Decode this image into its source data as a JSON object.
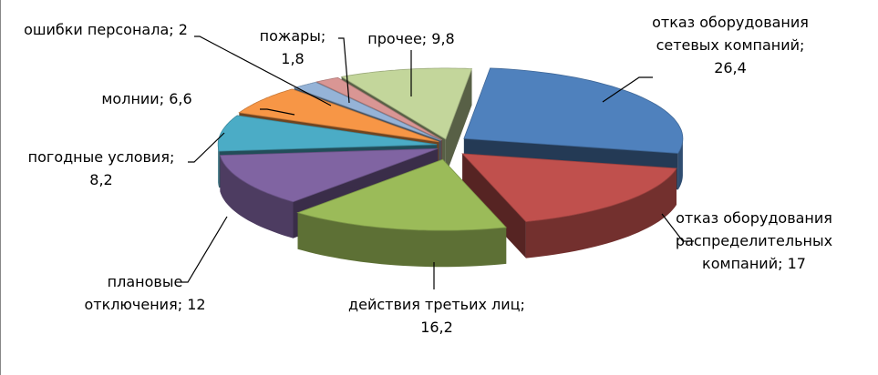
{
  "chart_data": {
    "type": "pie3d",
    "categories": [
      "отказ оборудования сетевых компаний;",
      "отказ оборудования распределительных компаний;",
      "действия третьих лиц;",
      "плановые отключения;",
      "погодные условия;",
      "молнии;",
      "ошибки персонала;",
      "пожары;",
      "прочее;"
    ],
    "values": [
      26.4,
      17,
      16.2,
      12,
      8.2,
      6.6,
      2,
      1.8,
      9.8
    ],
    "value_labels": [
      "26,4",
      "17",
      "16,2",
      "12",
      "8,2",
      "6,6",
      "2",
      "1,8",
      "9,8"
    ],
    "colors": [
      "#4f81bd",
      "#c0504d",
      "#9bbb59",
      "#8064a2",
      "#4bacc6",
      "#f79646",
      "#95b3d7",
      "#d99694",
      "#c3d69b"
    ]
  }
}
